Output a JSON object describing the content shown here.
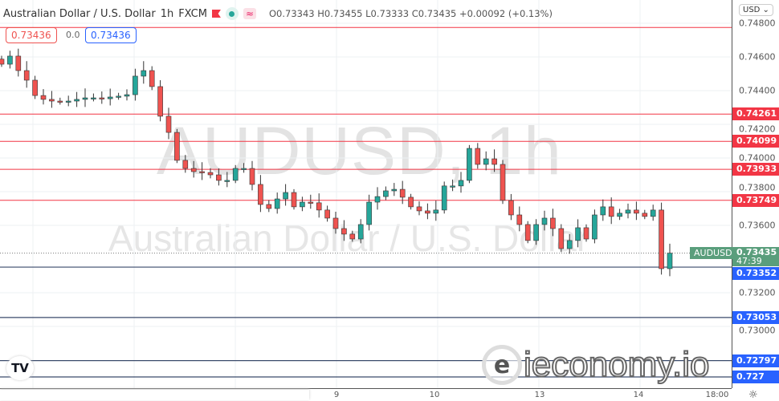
{
  "header": {
    "title": "Australian Dollar / U.S. Dollar",
    "interval": "1h",
    "source": "FXCM",
    "wave_icon": "≈",
    "ohlc": "O0.73343 H0.73455 L0.73333 C0.73435 +0.00092 (+0.13%)"
  },
  "trade": {
    "sell": "0.73436",
    "spread": "0.0",
    "buy": "0.73436"
  },
  "watermark": {
    "line1": "AUDUSD, 1h",
    "line2": "Australian Dollar / U.S. Dollar"
  },
  "axis": {
    "currency": "USD ⌄",
    "ticks": [
      "0.74800",
      "0.74600",
      "0.74400",
      "0.74200",
      "0.74000",
      "0.73800",
      "0.73600",
      "0.73200",
      "0.73000"
    ]
  },
  "time_axis": {
    "ticks": [
      "9",
      "10",
      "13",
      "14",
      "18:00"
    ]
  },
  "logo_text": "ieconomy.io",
  "tv_logo": "TV",
  "settings_icon": "☼",
  "current": {
    "symbol": "AUDUSD",
    "price": "0.73435",
    "countdown": "47:39",
    "color": "#5a9e7c"
  },
  "colors": {
    "up": "#26a69a",
    "down": "#ef5350",
    "resistance": "#f23645",
    "support": "#2962ff"
  },
  "chart_data": {
    "type": "candlestick",
    "symbol": "AUDUSD",
    "interval": "1h",
    "ylim": [
      0.7265,
      0.7485
    ],
    "grid": true,
    "yticks": [
      0.748,
      0.746,
      0.744,
      0.742,
      0.74,
      0.738,
      0.736,
      0.732,
      0.73
    ],
    "xticks": [
      "9",
      "10",
      "13",
      "14",
      "18:00"
    ],
    "closes": [
      0.74557,
      0.74605,
      0.74519,
      0.74462,
      0.74371,
      0.74348,
      0.74338,
      0.74333,
      0.74338,
      0.74348,
      0.74357,
      0.74357,
      0.74352,
      0.74362,
      0.74367,
      0.74376,
      0.74486,
      0.74519,
      0.74424,
      0.74248,
      0.74152,
      0.73986,
      0.73938,
      0.73919,
      0.73914,
      0.739,
      0.73867,
      0.73867,
      0.73938,
      0.73938,
      0.73843,
      0.73724,
      0.737,
      0.73757,
      0.73795,
      0.7371,
      0.73738,
      0.73734,
      0.73691,
      0.73643,
      0.73581,
      0.73548,
      0.73519,
      0.73605,
      0.73738,
      0.73771,
      0.73805,
      0.73814,
      0.73767,
      0.7371,
      0.73686,
      0.73672,
      0.73691,
      0.73834,
      0.73834,
      0.73867,
      0.74057,
      0.73962,
      0.73995,
      0.73962,
      0.73748,
      0.73662,
      0.73605,
      0.7351,
      0.73605,
      0.73643,
      0.73581,
      0.73462,
      0.7351,
      0.73586,
      0.73519,
      0.73662,
      0.7371,
      0.73653,
      0.73672,
      0.73691,
      0.73672,
      0.73653,
      0.73691,
      0.73343,
      0.73435
    ],
    "resistance_levels": [
      {
        "value": 0.74775,
        "label": ""
      },
      {
        "value": 0.74261,
        "label": "0.74261"
      },
      {
        "value": 0.74099,
        "label": "0.74099"
      },
      {
        "value": 0.73933,
        "label": "0.73933"
      },
      {
        "value": 0.73749,
        "label": "0.73749"
      }
    ],
    "support_levels": [
      {
        "value": 0.73352,
        "label": "0.73352"
      },
      {
        "value": 0.73053,
        "label": "0.73053"
      },
      {
        "value": 0.72797,
        "label": "0.72797"
      },
      {
        "value": 0.727,
        "label": "0.727"
      }
    ],
    "last_price": 0.73435
  }
}
